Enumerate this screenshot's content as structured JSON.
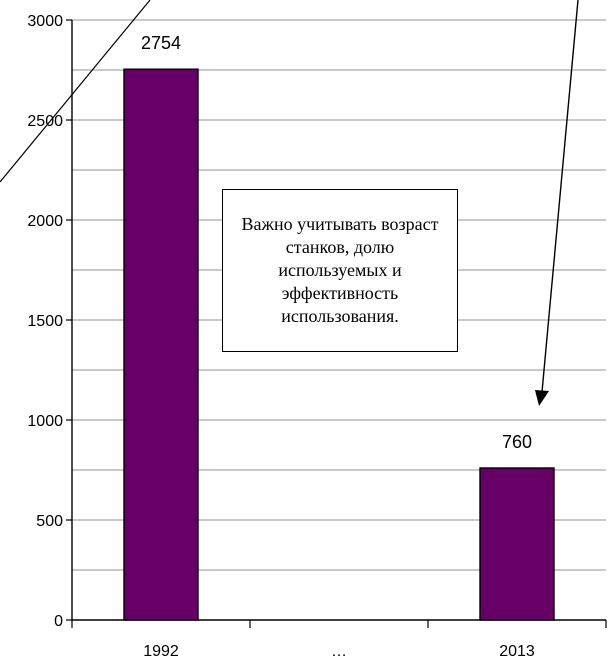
{
  "chart_data": {
    "type": "bar",
    "categories": [
      "1992",
      "…",
      "2013"
    ],
    "values": [
      2754,
      null,
      760
    ],
    "data_labels": [
      "2754",
      "",
      "760"
    ],
    "ylim": [
      0,
      3000
    ],
    "yticks": [
      0,
      500,
      1000,
      1500,
      2000,
      2500,
      3000
    ],
    "minor_grid_step": 250,
    "grid": true,
    "bar_color": "#660066",
    "annotation": "Важно учитывать возраст станков, долю используемых и эффективность использования."
  }
}
